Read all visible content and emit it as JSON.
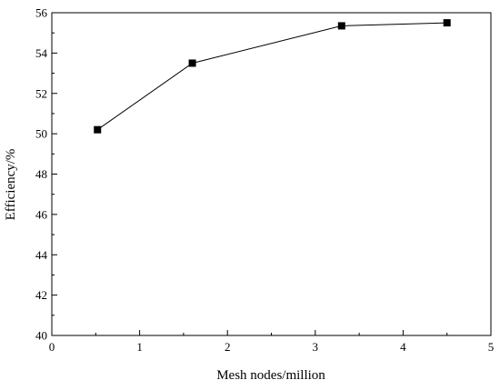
{
  "chart_data": {
    "type": "line",
    "title": "",
    "xlabel": "Mesh nodes/million",
    "ylabel": "Efficiency/%",
    "xlim": [
      0,
      5
    ],
    "ylim": [
      40,
      56
    ],
    "xticks": [
      0,
      1,
      2,
      3,
      4,
      5
    ],
    "yticks": [
      40,
      42,
      44,
      46,
      48,
      50,
      52,
      54,
      56
    ],
    "grid": false,
    "legend": "none",
    "series": [
      {
        "x": [
          0.52,
          1.6,
          3.3,
          4.5
        ],
        "y": [
          50.2,
          53.5,
          55.35,
          55.5
        ],
        "marker": "square",
        "color": "#000000"
      }
    ]
  }
}
